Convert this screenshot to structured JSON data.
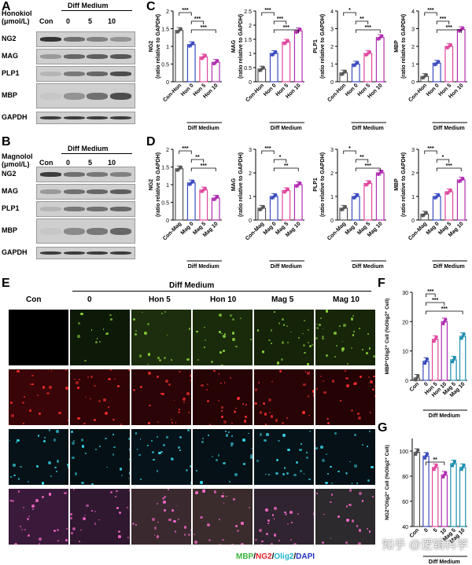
{
  "panels": {
    "A": "A",
    "B": "B",
    "C": "C",
    "D": "D",
    "E": "E",
    "F": "F",
    "G": "G"
  },
  "wb_A": {
    "compound_label": "Honokiol\n(μmol/L)",
    "con_label": "Con",
    "diff_label": "Diff Medium",
    "doses": [
      "0",
      "5",
      "10"
    ],
    "rows": [
      "NG2",
      "MAG",
      "PLP1",
      "MBP",
      "GAPDH"
    ],
    "intensity": [
      [
        0.9,
        0.55,
        0.45,
        0.35
      ],
      [
        0.3,
        0.6,
        0.65,
        0.7
      ],
      [
        0.15,
        0.5,
        0.6,
        0.75
      ],
      [
        0.05,
        0.35,
        0.55,
        0.75
      ],
      [
        0.85,
        0.85,
        0.85,
        0.85
      ]
    ]
  },
  "wb_B": {
    "compound_label": "Magnolol\n(μmol/L)",
    "con_label": "Con",
    "diff_label": "Diff Medium",
    "doses": [
      "0",
      "5",
      "10"
    ],
    "rows": [
      "NG2",
      "MAG",
      "PLP1",
      "MBP",
      "GAPDH"
    ],
    "intensity": [
      [
        0.85,
        0.55,
        0.5,
        0.45
      ],
      [
        0.3,
        0.55,
        0.6,
        0.65
      ],
      [
        0.15,
        0.5,
        0.55,
        0.6
      ],
      [
        0.05,
        0.4,
        0.5,
        0.6
      ],
      [
        0.85,
        0.85,
        0.85,
        0.85
      ]
    ]
  },
  "legend_E": {
    "mbp": "MBP",
    "ng2": "NG2",
    "olig2": "Olig2",
    "dapi": "DAPI",
    "sep": "/"
  },
  "E_header": {
    "diff": "Diff Medium",
    "cols": [
      "Con",
      "0",
      "Hon 5",
      "Hon 10",
      "Mag 5",
      "Mag 10"
    ]
  },
  "watermark": "知乎 @逻辑科学",
  "colors": {
    "con": "#555555",
    "d0": "#3b4cc0",
    "d5": "#e0479e",
    "d10": "#b02db0",
    "teal": "#1f8fb0",
    "grey": "#777777"
  },
  "chart_data": [
    {
      "id": "C1",
      "type": "bar",
      "ylabel": "NG2\n(ratio relative to GAPDH)",
      "categories": [
        "Con-Hon",
        "Hon 0",
        "Hon 5",
        "Hon 10"
      ],
      "values": [
        1.45,
        1.05,
        0.7,
        0.55
      ],
      "ylim": [
        0,
        2.0
      ],
      "yticks": [
        0.0,
        0.5,
        1.0,
        1.5,
        2.0
      ],
      "group_label": "Diff Medium",
      "sig": [
        {
          "a": 0,
          "b": 1,
          "t": "***"
        },
        {
          "a": 1,
          "b": 2,
          "t": "***"
        },
        {
          "a": 1,
          "b": 3,
          "t": "***"
        }
      ]
    },
    {
      "id": "C2",
      "type": "bar",
      "ylabel": "MAG\n(ratio relative to GAPDH)",
      "categories": [
        "Con-Hon",
        "Hon 0",
        "Hon 5",
        "Hon 10"
      ],
      "values": [
        0.45,
        1.0,
        1.4,
        1.8
      ],
      "ylim": [
        0,
        2.5
      ],
      "yticks": [
        0.0,
        0.5,
        1.0,
        1.5,
        2.0,
        2.5
      ],
      "group_label": "Diff Medium",
      "sig": [
        {
          "a": 0,
          "b": 1,
          "t": "***"
        },
        {
          "a": 1,
          "b": 2,
          "t": "***"
        },
        {
          "a": 1,
          "b": 3,
          "t": "***"
        }
      ]
    },
    {
      "id": "C3",
      "type": "bar",
      "ylabel": "PLP1\n(ratio relative to GAPDH)",
      "categories": [
        "Con-Hon",
        "Hon 0",
        "Hon 5",
        "Hon 10"
      ],
      "values": [
        0.5,
        1.0,
        1.6,
        2.5
      ],
      "ylim": [
        0,
        4
      ],
      "yticks": [
        0,
        1,
        2,
        3,
        4
      ],
      "group_label": "Diff Medium",
      "sig": [
        {
          "a": 0,
          "b": 1,
          "t": "*"
        },
        {
          "a": 1,
          "b": 2,
          "t": "**"
        },
        {
          "a": 1,
          "b": 3,
          "t": "***"
        }
      ]
    },
    {
      "id": "C4",
      "type": "bar",
      "ylabel": "MBP\n(ratio relative to GAPDH)",
      "categories": [
        "Con-Hon",
        "Hon 0",
        "Hon 5",
        "Hon 10"
      ],
      "values": [
        0.3,
        1.05,
        2.0,
        2.95
      ],
      "ylim": [
        0,
        4
      ],
      "yticks": [
        0,
        1,
        2,
        3,
        4
      ],
      "group_label": "Diff Medium",
      "sig": [
        {
          "a": 0,
          "b": 1,
          "t": "***"
        },
        {
          "a": 1,
          "b": 2,
          "t": "***"
        },
        {
          "a": 1,
          "b": 3,
          "t": "***"
        }
      ]
    },
    {
      "id": "D1",
      "type": "bar",
      "ylabel": "NG2\n(ratio relative to GAPDH)",
      "categories": [
        "Con-Mag",
        "Mag 0",
        "Mag 5",
        "Mag 10"
      ],
      "values": [
        1.45,
        1.05,
        0.85,
        0.62
      ],
      "ylim": [
        0,
        2.0
      ],
      "yticks": [
        0.0,
        0.5,
        1.0,
        1.5,
        2.0
      ],
      "group_label": "Diff Medium",
      "sig": [
        {
          "a": 0,
          "b": 1,
          "t": "***"
        },
        {
          "a": 1,
          "b": 2,
          "t": "**"
        },
        {
          "a": 1,
          "b": 3,
          "t": "***"
        }
      ]
    },
    {
      "id": "D2",
      "type": "bar",
      "ylabel": "MAG\n(ratio relative to GAPDH)",
      "categories": [
        "Con-Mag",
        "Mag 0",
        "Mag 5",
        "Mag 10"
      ],
      "values": [
        0.5,
        1.0,
        1.25,
        1.5
      ],
      "ylim": [
        0,
        3
      ],
      "yticks": [
        0,
        1,
        2,
        3
      ],
      "group_label": "Diff Medium",
      "sig": [
        {
          "a": 0,
          "b": 1,
          "t": "***"
        },
        {
          "a": 1,
          "b": 2,
          "t": "*"
        },
        {
          "a": 1,
          "b": 3,
          "t": "**"
        }
      ]
    },
    {
      "id": "D3",
      "type": "bar",
      "ylabel": "PLP1\n(ratio relative to GAPDH)",
      "categories": [
        "Con-Mag",
        "Mag 0",
        "Mag 5",
        "Mag 10"
      ],
      "values": [
        0.5,
        1.0,
        1.55,
        2.0
      ],
      "ylim": [
        0,
        3
      ],
      "yticks": [
        0,
        1,
        2,
        3
      ],
      "group_label": "Diff Medium",
      "sig": [
        {
          "a": 0,
          "b": 1,
          "t": "*"
        },
        {
          "a": 1,
          "b": 2,
          "t": "**"
        },
        {
          "a": 1,
          "b": 3,
          "t": "***"
        }
      ]
    },
    {
      "id": "D4",
      "type": "bar",
      "ylabel": "MBP\n(ratio relative to GAPDH)",
      "categories": [
        "Con-Mag",
        "Mag 0",
        "Mag 5",
        "Mag 10"
      ],
      "values": [
        0.25,
        1.0,
        1.2,
        1.7
      ],
      "ylim": [
        0,
        3
      ],
      "yticks": [
        0,
        1,
        2,
        3
      ],
      "group_label": "Diff Medium",
      "sig": [
        {
          "a": 0,
          "b": 1,
          "t": "***"
        },
        {
          "a": 1,
          "b": 2,
          "t": "*"
        },
        {
          "a": 1,
          "b": 3,
          "t": "***"
        }
      ]
    },
    {
      "id": "F",
      "type": "bar",
      "ylabel": "MBP⁺Olig2⁺ Cell (%Olig2⁺ Cell)",
      "categories": [
        "Con",
        "0",
        "Hon 5",
        "Hon 10",
        "Mag 5",
        "Mag 10"
      ],
      "values": [
        0.8,
        6.5,
        14,
        20,
        7,
        15
      ],
      "ylim": [
        0,
        30
      ],
      "yticks": [
        0,
        10,
        20,
        30
      ],
      "group_label": "Diff Medium",
      "sig": [
        {
          "a": 1,
          "b": 2,
          "t": "***"
        },
        {
          "a": 1,
          "b": 3,
          "t": "***"
        },
        {
          "a": 1,
          "b": 5,
          "t": "***"
        }
      ]
    },
    {
      "id": "G",
      "type": "bar",
      "ylabel": "NG2⁺Olig2⁺ Cell (%Olig2⁺ Cell)",
      "categories": [
        "Con",
        "0",
        "5",
        "10",
        "Mag 5",
        "Mag 10"
      ],
      "values": [
        99,
        96,
        87,
        81,
        90,
        87
      ],
      "ylim": [
        40,
        110
      ],
      "yticks": [
        40,
        60,
        80,
        100
      ],
      "group_label": "Diff Medium",
      "sig": [
        {
          "a": 1,
          "b": 3,
          "t": "**"
        }
      ]
    }
  ]
}
